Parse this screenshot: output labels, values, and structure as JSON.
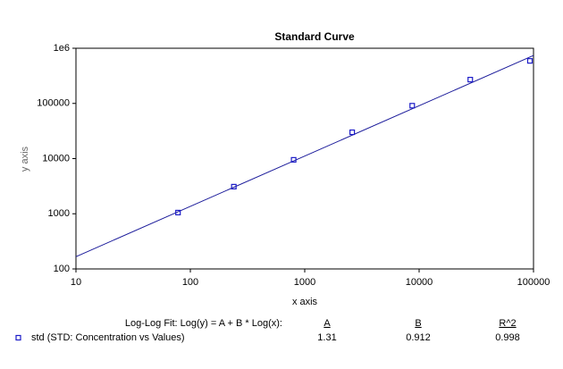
{
  "chart_data": {
    "type": "scatter",
    "title": "Standard Curve",
    "x_label": "x axis",
    "y_label": "y axis",
    "xscale": "log",
    "yscale": "log",
    "xlim": [
      10,
      100000
    ],
    "ylim": [
      100,
      1000000
    ],
    "xticks": [
      10,
      100,
      1000,
      10000,
      100000
    ],
    "yticks": [
      100,
      1000,
      10000,
      100000,
      {
        "value": 1000000,
        "label": "1e6"
      }
    ],
    "series": [
      {
        "name": "std (STD: Concentration vs Values)",
        "color": "#1c1cc8",
        "x": [
          78,
          240,
          800,
          2600,
          8700,
          28000,
          93000
        ],
        "values": [
          1050,
          3100,
          9500,
          30000,
          91000,
          270000,
          590000
        ]
      }
    ],
    "fit": {
      "label": "Log-Log Fit: Log(y) = A + B * Log(x):",
      "line_color": "#1a1a9a",
      "headers": [
        "A",
        "B",
        "R^2"
      ],
      "values": [
        1.31,
        0.912,
        0.998
      ]
    }
  }
}
